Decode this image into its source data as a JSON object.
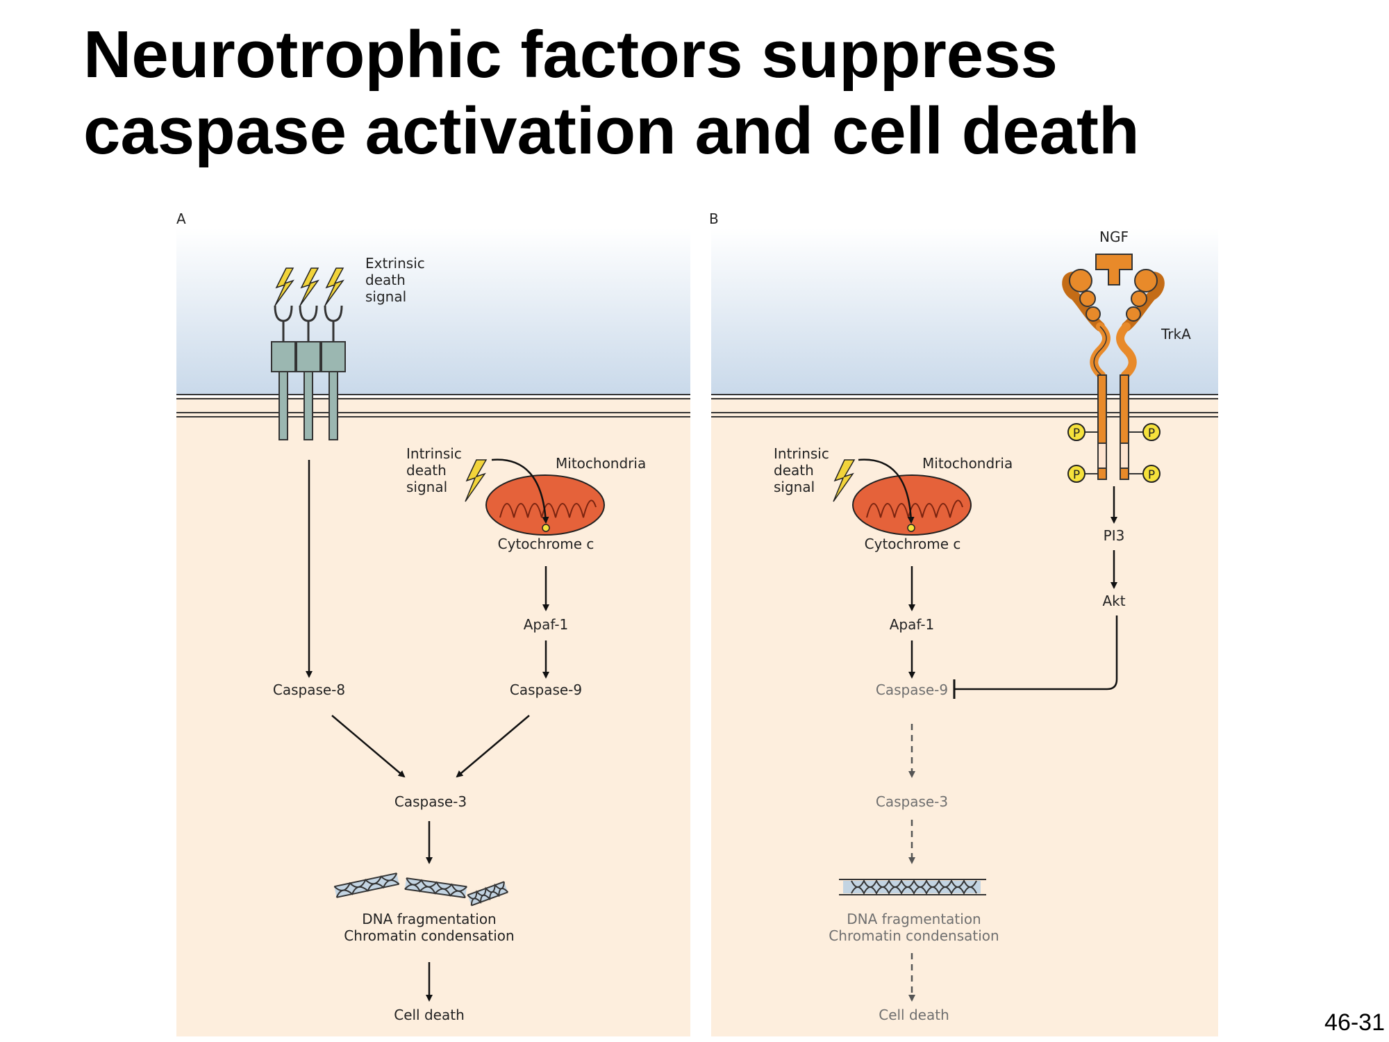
{
  "slide": {
    "title_line1": "Neurotrophic factors suppress",
    "title_line2": "caspase activation and cell death",
    "number": "46-31"
  },
  "colors": {
    "extracellular": "#e9f0f6",
    "cytoplasm": "#fdeedd",
    "receptor_a": "#9bb7b1",
    "mitochondrion": "#e5623a",
    "trka": "#e88a2a",
    "phosphate": "#f6e23c",
    "lightning": "#f2d43a",
    "faded_text": "#6f6f6f"
  },
  "panel_a": {
    "label": "A",
    "extrinsic_label": [
      "Extrinsic",
      "death",
      "signal"
    ],
    "intrinsic_label": [
      "Intrinsic",
      "death",
      "signal"
    ],
    "mitochondria_label": "Mitochondria",
    "cytochrome_label": "Cytochrome c",
    "apaf_label": "Apaf-1",
    "caspase8_label": "Caspase-8",
    "caspase9_label": "Caspase-9",
    "caspase3_label": "Caspase-3",
    "dna_label_line1": "DNA fragmentation",
    "dna_label_line2": "Chromatin condensation",
    "cell_death_label": "Cell death"
  },
  "panel_b": {
    "label": "B",
    "ngf_label": "NGF",
    "trka_label": "TrkA",
    "phosphate_label": "P",
    "intrinsic_label": [
      "Intrinsic",
      "death",
      "signal"
    ],
    "mitochondria_label": "Mitochondria",
    "cytochrome_label": "Cytochrome c",
    "apaf_label": "Apaf-1",
    "pi3_label": "PI3",
    "akt_label": "Akt",
    "caspase9_label": "Caspase-9",
    "caspase3_label": "Caspase-3",
    "dna_label_line1": "DNA fragmentation",
    "dna_label_line2": "Chromatin condensation",
    "cell_death_label": "Cell death"
  }
}
